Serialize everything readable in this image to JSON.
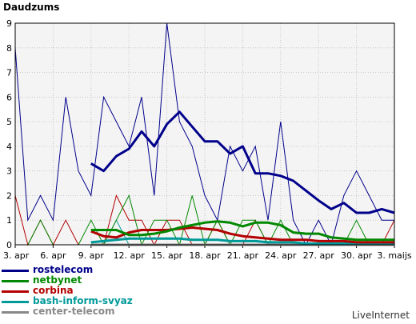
{
  "page": {
    "title": "Daudzums",
    "footer": "LiveInternet"
  },
  "chart_data": {
    "type": "line",
    "title": "Daudzums",
    "ylim": [
      0,
      9
    ],
    "y_ticks": [
      "0",
      "1",
      "2",
      "3",
      "4",
      "5",
      "6",
      "7",
      "8",
      "9"
    ],
    "x_tick_labels": [
      "3. apr",
      "6. apr",
      "9. apr",
      "12. apr",
      "15. apr",
      "18. apr",
      "21. apr",
      "24. apr",
      "27. apr",
      "30. apr",
      "3. maijs"
    ],
    "x_tick_indices": [
      0,
      3,
      6,
      9,
      12,
      15,
      18,
      21,
      24,
      27,
      30
    ],
    "n_points": 31,
    "grid": true,
    "legend_position": "bottom-left",
    "series": [
      {
        "name": "rostelecom",
        "color": "#00008b",
        "daily": [
          8,
          1,
          2,
          1,
          6,
          3,
          2,
          6,
          5,
          4,
          6,
          2,
          9,
          5,
          4,
          2,
          1,
          4,
          3,
          4,
          1,
          5,
          1,
          0,
          1,
          0,
          2,
          3,
          2,
          1,
          1
        ],
        "smoothed_start": 6,
        "smoothed": [
          3.3,
          3.0,
          3.6,
          3.9,
          4.6,
          4.0,
          4.9,
          5.4,
          4.8,
          4.2,
          4.2,
          3.7,
          4.0,
          2.9,
          2.9,
          2.8,
          2.6,
          2.2,
          1.8,
          1.45,
          1.7,
          1.3,
          1.3,
          1.45,
          1.3
        ]
      },
      {
        "name": "netbynet",
        "color": "#008800",
        "daily": [
          0,
          0,
          1,
          0,
          0,
          0,
          1,
          0,
          1,
          2,
          0,
          1,
          1,
          0,
          2,
          0,
          1,
          0,
          1,
          1,
          0,
          1,
          0,
          0,
          0,
          0,
          0,
          1,
          0,
          0,
          0
        ],
        "smoothed_start": 6,
        "smoothed": [
          0.6,
          0.6,
          0.6,
          0.4,
          0.4,
          0.45,
          0.55,
          0.7,
          0.8,
          0.9,
          0.95,
          0.9,
          0.75,
          0.9,
          0.9,
          0.8,
          0.5,
          0.45,
          0.45,
          0.3,
          0.25,
          0.2,
          0.2,
          0.2,
          0.2
        ]
      },
      {
        "name": "corbina",
        "color": "#b30000",
        "daily": [
          2,
          0,
          1,
          0,
          1,
          0,
          0,
          0,
          2,
          1,
          1,
          0,
          1,
          1,
          0,
          0,
          1,
          0,
          0,
          1,
          0,
          0,
          0,
          0,
          0,
          0,
          0,
          0,
          0,
          0,
          1
        ],
        "smoothed_start": 6,
        "smoothed": [
          0.55,
          0.35,
          0.3,
          0.5,
          0.6,
          0.6,
          0.6,
          0.65,
          0.7,
          0.65,
          0.6,
          0.45,
          0.35,
          0.3,
          0.25,
          0.2,
          0.2,
          0.2,
          0.15,
          0.15,
          0.15,
          0.1,
          0.1,
          0.1,
          0.1
        ]
      },
      {
        "name": "bash-inform-svyaz",
        "color": "#009999",
        "daily": [
          0,
          0,
          0,
          0,
          0,
          0,
          0,
          0,
          1,
          0,
          0,
          0,
          0,
          0,
          0,
          0,
          0,
          0,
          0,
          0,
          0,
          0,
          0,
          0,
          0,
          0,
          0,
          0,
          0,
          0,
          0
        ],
        "smoothed_start": 6,
        "smoothed": [
          0.1,
          0.15,
          0.2,
          0.25,
          0.25,
          0.25,
          0.25,
          0.25,
          0.2,
          0.2,
          0.2,
          0.15,
          0.15,
          0.15,
          0.1,
          0.1,
          0.1,
          0.05,
          0.05,
          0.05,
          0.05,
          0.05,
          0.05,
          0.05,
          0.05
        ]
      },
      {
        "name": "center-telecom",
        "color": "#888888",
        "daily": [
          0,
          0,
          0,
          0,
          0,
          0,
          0,
          0,
          0,
          0,
          0,
          0,
          0,
          0,
          0,
          0,
          0,
          0,
          0,
          0,
          0,
          0,
          0,
          0,
          0,
          0,
          0,
          0,
          0,
          0,
          0
        ],
        "smoothed_start": 6,
        "smoothed": [
          0,
          0,
          0,
          0,
          0,
          0,
          0,
          0,
          0,
          0,
          0,
          0,
          0,
          0,
          0,
          0,
          0,
          0,
          0,
          0,
          0,
          0,
          0,
          0,
          0
        ]
      }
    ]
  }
}
